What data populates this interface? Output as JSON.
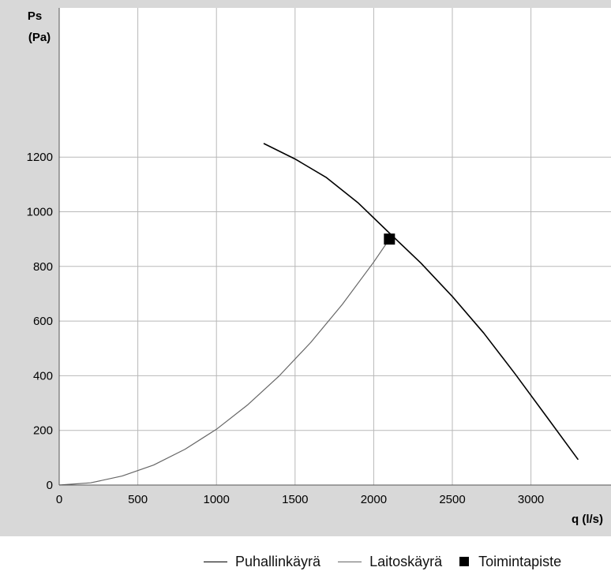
{
  "chart_data": {
    "type": "line",
    "xlabel": "q (l/s)",
    "ylabel_line1": "Ps",
    "ylabel_line2": "(Pa)",
    "xlim": [
      0,
      3500
    ],
    "ylim": [
      0,
      1300
    ],
    "xticks": [
      0,
      500,
      1000,
      1500,
      2000,
      2500,
      3000
    ],
    "yticks": [
      0,
      200,
      400,
      600,
      800,
      1000,
      1200
    ],
    "xtick_labels": [
      "0",
      "500",
      "1000",
      "1500",
      "2000",
      "2500",
      "3000"
    ],
    "ytick_labels": [
      "0",
      "200",
      "400",
      "600",
      "800",
      "1000",
      "1200"
    ],
    "grid": true,
    "legend_position": "bottom",
    "series": [
      {
        "name": "Puhallinkäyrä",
        "type": "line",
        "color": "#000000",
        "x": [
          1300,
          1500,
          1700,
          1900,
          2100,
          2300,
          2500,
          2700,
          2900,
          3100,
          3300
        ],
        "y": [
          1250,
          1193,
          1125,
          1033,
          922,
          812,
          690,
          556,
          406,
          250,
          93
        ]
      },
      {
        "name": "Laitoskäyrä",
        "type": "line",
        "color": "#666666",
        "x": [
          0,
          200,
          400,
          600,
          800,
          1000,
          1200,
          1400,
          1600,
          1800,
          2000,
          2100
        ],
        "y": [
          0,
          8,
          33,
          73,
          131,
          204,
          294,
          400,
          522,
          661,
          816,
          900
        ]
      },
      {
        "name": "Toimintapiste",
        "type": "point",
        "color": "#000000",
        "x": [
          2100
        ],
        "y": [
          900
        ]
      }
    ]
  }
}
